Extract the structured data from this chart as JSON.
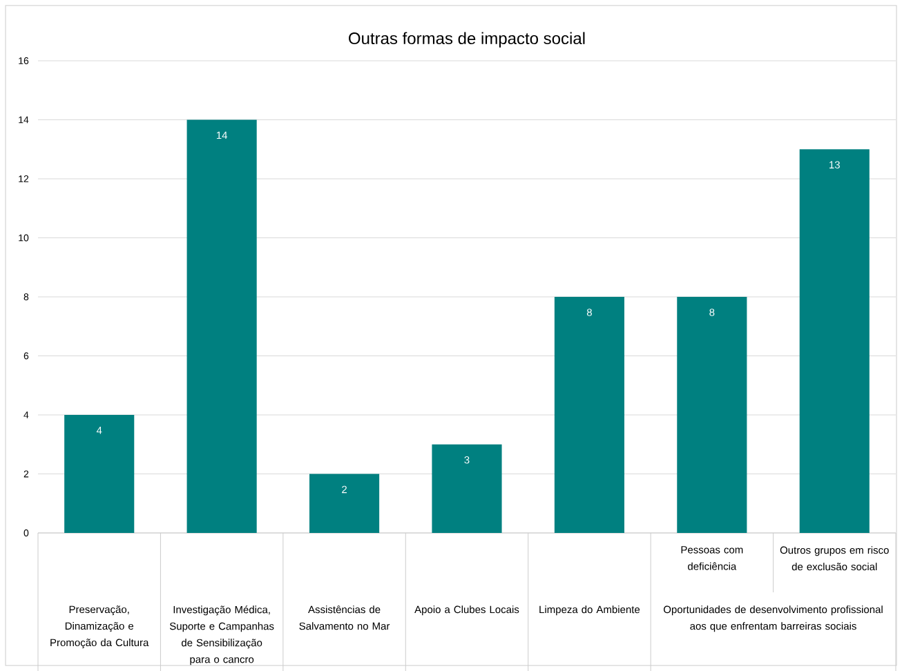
{
  "chart_data": {
    "type": "bar",
    "title": "Outras formas de impacto social",
    "categories": [
      "Preservação, Dinamização e Promoção da Cultura",
      "Investigação Médica, Suporte e Campanhas de Sensibilização para o cancro",
      "Assistências de Salvamento no Mar",
      "Apoio a Clubes Locais",
      "Limpeza do Ambiente",
      "Pessoas com deficiência",
      "Outros grupos em risco de exclusão social"
    ],
    "values": [
      4,
      14,
      2,
      3,
      8,
      8,
      13
    ],
    "color": "#008080",
    "ylim": [
      0,
      16
    ],
    "yticks": [
      0,
      2,
      4,
      6,
      8,
      10,
      12,
      14,
      16
    ],
    "grid": "y",
    "data_labels": true,
    "annotations": [
      "Oportunidades de desenvolvimento profissional aos que enfrentam barreiras sociais"
    ]
  }
}
